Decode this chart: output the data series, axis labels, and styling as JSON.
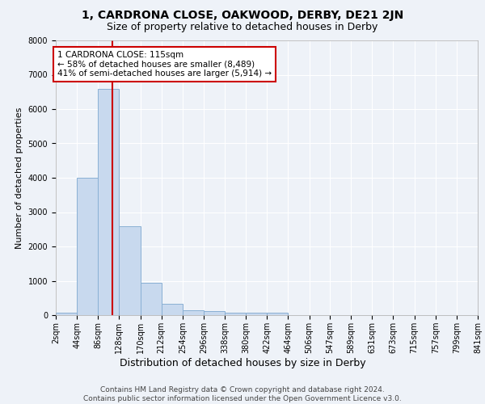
{
  "title": "1, CARDRONA CLOSE, OAKWOOD, DERBY, DE21 2JN",
  "subtitle": "Size of property relative to detached houses in Derby",
  "xlabel": "Distribution of detached houses by size in Derby",
  "ylabel": "Number of detached properties",
  "bar_color": "#c8d9ee",
  "bar_edge_color": "#8ab0d4",
  "background_color": "#eef2f8",
  "vline_x": 115,
  "vline_color": "#cc0000",
  "annotation_text": "1 CARDRONA CLOSE: 115sqm\n← 58% of detached houses are smaller (8,489)\n41% of semi-detached houses are larger (5,914) →",
  "annotation_box_facecolor": "#ffffff",
  "annotation_box_edgecolor": "#cc0000",
  "bin_edges": [
    2,
    44,
    86,
    128,
    170,
    212,
    254,
    296,
    338,
    380,
    422,
    464,
    506,
    547,
    589,
    631,
    673,
    715,
    757,
    799,
    841
  ],
  "bar_heights": [
    80,
    4000,
    6600,
    2600,
    950,
    320,
    140,
    120,
    80,
    60,
    60,
    0,
    0,
    0,
    0,
    0,
    0,
    0,
    0,
    0
  ],
  "ylim": [
    0,
    8000
  ],
  "yticks": [
    0,
    1000,
    2000,
    3000,
    4000,
    5000,
    6000,
    7000,
    8000
  ],
  "footnote": "Contains HM Land Registry data © Crown copyright and database right 2024.\nContains public sector information licensed under the Open Government Licence v3.0.",
  "footnote_fontsize": 6.5,
  "title_fontsize": 10,
  "subtitle_fontsize": 9,
  "xlabel_fontsize": 9,
  "ylabel_fontsize": 8,
  "tick_fontsize": 7,
  "annot_fontsize": 7.5
}
